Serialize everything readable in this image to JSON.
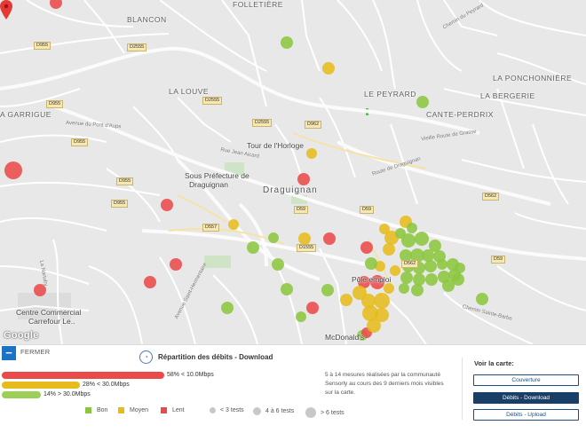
{
  "map": {
    "places": {
      "blancon": "BLANCON",
      "folletiere": "FOLLETIÈRE",
      "la_ponchonniere": "LA PONCHONNIÈRE",
      "la_louve": "LA LOUVE",
      "le_peyrard": "LE PEYRARD",
      "la_bergerie": "LA BERGERIE",
      "cante_perdrix": "CANTE-PERDRIX",
      "a_garrigue": "A GARRIGUE"
    },
    "town": "Draguignan",
    "pois": {
      "tour_horloge": "Tour de l'Horloge",
      "sous_prefecture_1": "Sous Préfecture de",
      "sous_prefecture_2": "Draguignan",
      "pole_emploi": "Pôle emploi",
      "centre_commercial_1": "Centre Commercial",
      "centre_commercial_2": "Carrefour Le..",
      "mcdonalds": "McDonald's"
    },
    "roads": [
      "D955",
      "D2555",
      "D2555",
      "D955",
      "D955",
      "D2555",
      "D955",
      "D962",
      "D955",
      "D557",
      "D59",
      "D1555",
      "D59",
      "D562",
      "D59",
      "D562"
    ],
    "streets": [
      "Avenue du Pont d'Aups",
      "Route de Draguignan",
      "Vieille Route de Grasse",
      "Rue Jean Aicard",
      "Avenue Saint-Hermentaire",
      "La Nartuby",
      "Chemin Sainte-Barbe",
      "Chemin du Peyrard"
    ],
    "google": "Google"
  },
  "panel": {
    "close_label": "FERMER",
    "title": "Répartition des débits - Download",
    "description": "5 à 14 mesures réalisées par la communauté Sensorly au cours des 9 derniers mois visibles sur la carte.",
    "bars": [
      {
        "label": "58% < 10.0Mbps",
        "percent": 58,
        "color": "#ea4a4a"
      },
      {
        "label": "28% < 30.0Mbps",
        "percent": 28,
        "color": "#e6bc1d"
      },
      {
        "label": "14% > 30.0Mbps",
        "percent": 14,
        "color": "#9ccf55"
      }
    ],
    "legend": {
      "bon": "Bon",
      "moyen": "Moyen",
      "lent": "Lent",
      "lt3": "< 3 tests",
      "four_six": "4 à 6 tests",
      "gt6": "> 6 tests"
    },
    "colors": {
      "bon": "#8cc63f",
      "moyen": "#e6bc1d",
      "lent": "#ea4a4a",
      "accent": "#1a73c6"
    },
    "voir_label": "Voir la carte:",
    "buttons": [
      {
        "label": "Couverture",
        "active": false
      },
      {
        "label": "Débits - Download",
        "active": true
      },
      {
        "label": "Débits - Upload",
        "active": false
      }
    ]
  }
}
